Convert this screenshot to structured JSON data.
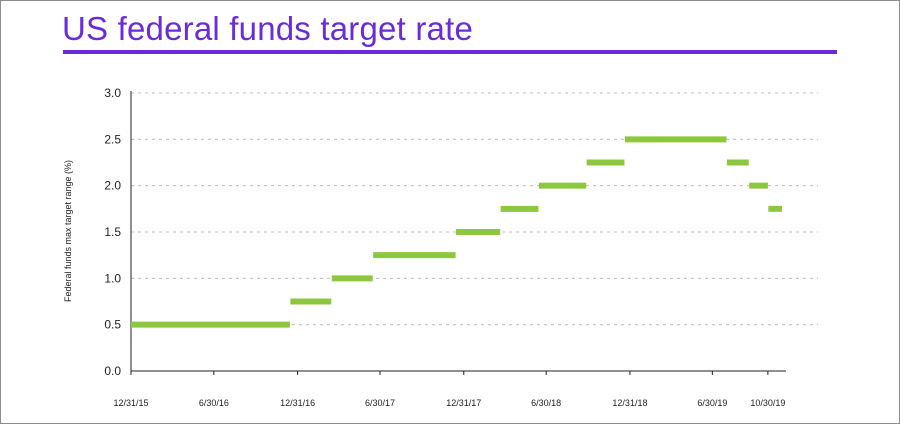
{
  "chart_data": {
    "type": "line",
    "title": "US federal funds target rate",
    "xlabel": "",
    "ylabel": "Federal funds max target range (%)",
    "ylim": [
      0,
      3.0
    ],
    "yticks": [
      "0.0",
      "0.5",
      "1.0",
      "1.5",
      "2.0",
      "2.5",
      "3.0"
    ],
    "xticks": [
      "12/31/15",
      "6/30/16",
      "12/31/16",
      "6/30/17",
      "12/31/17",
      "6/30/18",
      "12/31/18",
      "6/30/19",
      "10/30/19"
    ],
    "grid": true,
    "series_color": "#8dc63f",
    "grid_color": "#bdbdbd",
    "title_color": "#6a2bd9",
    "segments": [
      {
        "start": "12/31/15",
        "end": "12/14/16",
        "value": 0.5
      },
      {
        "start": "12/15/16",
        "end": "3/15/17",
        "value": 0.75
      },
      {
        "start": "3/16/17",
        "end": "6/14/17",
        "value": 1.0
      },
      {
        "start": "6/15/17",
        "end": "12/13/17",
        "value": 1.25
      },
      {
        "start": "12/14/17",
        "end": "3/21/18",
        "value": 1.5
      },
      {
        "start": "3/22/18",
        "end": "6/13/18",
        "value": 1.75
      },
      {
        "start": "6/14/18",
        "end": "9/26/18",
        "value": 2.0
      },
      {
        "start": "9/27/18",
        "end": "12/19/18",
        "value": 2.25
      },
      {
        "start": "12/20/18",
        "end": "7/31/19",
        "value": 2.5
      },
      {
        "start": "8/1/19",
        "end": "9/18/19",
        "value": 2.25
      },
      {
        "start": "9/19/19",
        "end": "10/30/19",
        "value": 2.0
      },
      {
        "start": "10/31/19",
        "end": "11/30/19",
        "value": 1.75
      }
    ]
  }
}
